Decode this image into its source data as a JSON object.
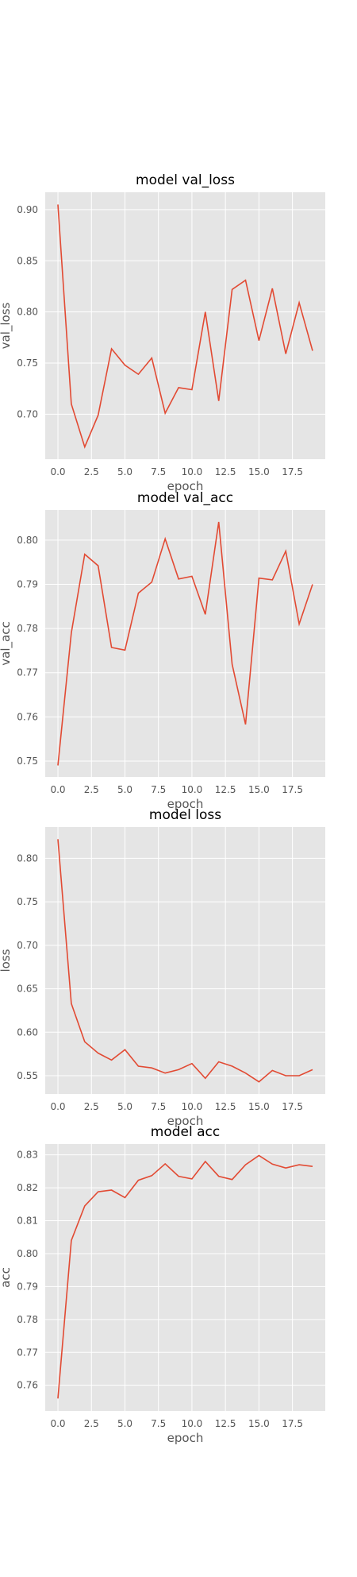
{
  "chart_data": [
    {
      "type": "line",
      "title": "model val_loss",
      "xlabel": "epoch",
      "ylabel": "val_loss",
      "x": [
        0,
        1,
        2,
        3,
        4,
        5,
        6,
        7,
        8,
        9,
        10,
        11,
        12,
        13,
        14,
        15,
        16,
        17,
        18,
        19
      ],
      "values": [
        0.905,
        0.71,
        0.668,
        0.699,
        0.764,
        0.748,
        0.739,
        0.755,
        0.701,
        0.726,
        0.724,
        0.8,
        0.713,
        0.822,
        0.831,
        0.772,
        0.823,
        0.759,
        0.809,
        0.762
      ],
      "xlim": [
        -0.95,
        19.95
      ],
      "ylim": [
        0.656,
        0.917
      ],
      "xticks": [
        0,
        2.5,
        5,
        7.5,
        10,
        12.5,
        15,
        17.5
      ],
      "xtick_labels": [
        "0.0",
        "2.5",
        "5.0",
        "7.5",
        "10.0",
        "12.5",
        "15.0",
        "17.5"
      ],
      "yticks": [
        0.7,
        0.75,
        0.8,
        0.85,
        0.9
      ],
      "ytick_labels": [
        "0.70",
        "0.75",
        "0.80",
        "0.85",
        "0.90"
      ],
      "grid": true,
      "color": "#e24a33"
    },
    {
      "type": "line",
      "title": "model val_acc",
      "xlabel": "epoch",
      "ylabel": "val_acc",
      "x": [
        0,
        1,
        2,
        3,
        4,
        5,
        6,
        7,
        8,
        9,
        10,
        11,
        12,
        13,
        14,
        15,
        16,
        17,
        18,
        19
      ],
      "values": [
        0.749,
        0.779,
        0.7968,
        0.7942,
        0.7757,
        0.7751,
        0.788,
        0.7905,
        0.8003,
        0.7912,
        0.7918,
        0.7832,
        0.8041,
        0.7719,
        0.7583,
        0.7914,
        0.791,
        0.7975,
        0.781,
        0.79
      ],
      "xlim": [
        -0.95,
        19.95
      ],
      "ylim": [
        0.7464,
        0.8068
      ],
      "xticks": [
        0,
        2.5,
        5,
        7.5,
        10,
        12.5,
        15,
        17.5
      ],
      "xtick_labels": [
        "0.0",
        "2.5",
        "5.0",
        "7.5",
        "10.0",
        "12.5",
        "15.0",
        "17.5"
      ],
      "yticks": [
        0.75,
        0.76,
        0.77,
        0.78,
        0.79,
        0.8
      ],
      "ytick_labels": [
        "0.75",
        "0.76",
        "0.77",
        "0.78",
        "0.79",
        "0.80"
      ],
      "grid": true,
      "color": "#e24a33"
    },
    {
      "type": "line",
      "title": "model loss",
      "xlabel": "epoch",
      "ylabel": "loss",
      "x": [
        0,
        1,
        2,
        3,
        4,
        5,
        6,
        7,
        8,
        9,
        10,
        11,
        12,
        13,
        14,
        15,
        16,
        17,
        18,
        19
      ],
      "values": [
        0.822,
        0.633,
        0.589,
        0.576,
        0.568,
        0.58,
        0.561,
        0.559,
        0.553,
        0.557,
        0.564,
        0.547,
        0.566,
        0.561,
        0.553,
        0.543,
        0.556,
        0.55,
        0.55,
        0.557
      ],
      "xlim": [
        -0.95,
        19.95
      ],
      "ylim": [
        0.529,
        0.836
      ],
      "xticks": [
        0,
        2.5,
        5,
        7.5,
        10,
        12.5,
        15,
        17.5
      ],
      "xtick_labels": [
        "0.0",
        "2.5",
        "5.0",
        "7.5",
        "10.0",
        "12.5",
        "15.0",
        "17.5"
      ],
      "yticks": [
        0.55,
        0.6,
        0.65,
        0.7,
        0.75,
        0.8
      ],
      "ytick_labels": [
        "0.55",
        "0.60",
        "0.65",
        "0.70",
        "0.75",
        "0.80"
      ],
      "grid": true,
      "color": "#e24a33"
    },
    {
      "type": "line",
      "title": "model acc",
      "xlabel": "epoch",
      "ylabel": "acc",
      "x": [
        0,
        1,
        2,
        3,
        4,
        5,
        6,
        7,
        8,
        9,
        10,
        11,
        12,
        13,
        14,
        15,
        16,
        17,
        18,
        19
      ],
      "values": [
        0.756,
        0.804,
        0.8145,
        0.8188,
        0.8193,
        0.817,
        0.8223,
        0.8237,
        0.8273,
        0.8235,
        0.8227,
        0.828,
        0.8235,
        0.8225,
        0.827,
        0.8298,
        0.8272,
        0.826,
        0.827,
        0.8265
      ],
      "xlim": [
        -0.95,
        19.95
      ],
      "ylim": [
        0.7522,
        0.8333
      ],
      "xticks": [
        0,
        2.5,
        5,
        7.5,
        10,
        12.5,
        15,
        17.5
      ],
      "xtick_labels": [
        "0.0",
        "2.5",
        "5.0",
        "7.5",
        "10.0",
        "12.5",
        "15.0",
        "17.5"
      ],
      "yticks": [
        0.76,
        0.77,
        0.78,
        0.79,
        0.8,
        0.81,
        0.82,
        0.83
      ],
      "ytick_labels": [
        "0.76",
        "0.77",
        "0.78",
        "0.79",
        "0.80",
        "0.81",
        "0.82",
        "0.83"
      ],
      "grid": true,
      "color": "#e24a33"
    }
  ]
}
